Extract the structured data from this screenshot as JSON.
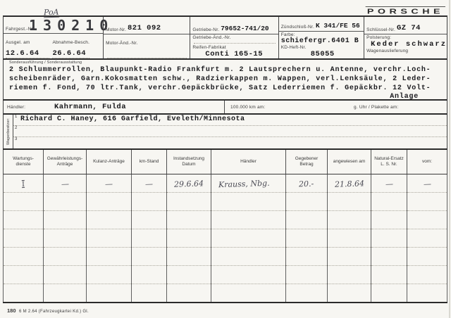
{
  "brand": {
    "logo_text": "PORSCHE"
  },
  "handwritten_note": "PoA",
  "vehicle": {
    "chassis": {
      "label": "Fahrgest.-Nr.",
      "value": "130210"
    },
    "issued": {
      "label": "Ausgel. am",
      "value": "12.6.64"
    },
    "acceptance": {
      "label": "Abnahme-Besch.",
      "value": "26.6.64"
    },
    "engine": {
      "label": "Motor-Nr.",
      "value": "821 092"
    },
    "engine_mod": {
      "label": "Motor-Änd.-Nr.",
      "value": ""
    },
    "gearbox": {
      "label": "Getriebe-Nr.",
      "value": "79652-741/20"
    },
    "gearbox_mod": {
      "label": "Getriebe-Änd.-Nr.",
      "value": ""
    },
    "tires": {
      "label": "Reifen-Fabrikat",
      "value": "Conti 165-15"
    },
    "ignition": {
      "label": "Zündschloß-Nr.",
      "value": "K 341/FE 56"
    },
    "paint": {
      "label": "Farbe:",
      "value": "schiefergr.6401 B"
    },
    "service_book": {
      "label": "KD-Heft-Nr.",
      "value": "85055"
    },
    "key": {
      "label": "Schlüssel-Nr.",
      "value": "GZ 74"
    },
    "upholstery": {
      "label": "Polsterung:",
      "value": "Keder schwarz"
    },
    "delivery": {
      "label": "Wagenauslieferung",
      "value": ""
    }
  },
  "special_equipment": {
    "label": "Sonderausführung / Sonderausstattung",
    "lines": [
      "2 Schlummerrollen, Blaupunkt-Radio Frankfurt m. 2 Lautsprechern u. Antenne, verchr.Loch-",
      "scheibenräder, Garn.Kokosmatten schw., Radzierkappen m. Wappen, verl.Lenksäule, 2 Leder-",
      "riemen f. Fond, 70 ltr.Tank, verchr.Gepäckbrücke, Satz Lederriemen f. Gepäckbr. 12 Volt-"
    ],
    "last_line": "Anlage"
  },
  "dealer_row": {
    "dealer_label": "Händler:",
    "dealer_value": "Kahrmann, Fulda",
    "km_label": "100.000 km am:",
    "clock_label": "g. Uhr / Plakette am:"
  },
  "owner": {
    "side_label": "Wagenbesitzer:",
    "rows": [
      {
        "num": "1",
        "text": "Richard C. Haney, 616 Garfield, Eveleth/Minnesota"
      },
      {
        "num": "2",
        "text": ""
      },
      {
        "num": "3",
        "text": ""
      }
    ]
  },
  "service_table": {
    "headers": [
      "Wartungs-\ndienste",
      "Gewährleistungs-\nAnträge",
      "Kulanz-Anträge",
      "km-Stand",
      "Instandsetzung\nDatum",
      "Händler",
      "Gegebener\nBetrag",
      "angewiesen am",
      "Natural-Ersatz\nL. S. Nr.",
      "vom:"
    ],
    "rows": [
      [
        "I",
        "—",
        "—",
        "—",
        "29.6.64",
        "Krauss, Nbg.",
        "20.-",
        "21.8.64",
        "—",
        "—"
      ],
      [
        "",
        "",
        "",
        "",
        "",
        "",
        "",
        "",
        "",
        ""
      ],
      [
        "",
        "",
        "",
        "",
        "",
        "",
        "",
        "",
        "",
        ""
      ],
      [
        "",
        "",
        "",
        "",
        "",
        "",
        "",
        "",
        "",
        ""
      ],
      [
        "",
        "",
        "",
        "",
        "",
        "",
        "",
        "",
        "",
        ""
      ],
      [
        "",
        "",
        "",
        "",
        "",
        "",
        "",
        "",
        "",
        ""
      ],
      [
        "",
        "",
        "",
        "",
        "",
        "",
        "",
        "",
        "",
        ""
      ]
    ]
  },
  "footer": {
    "form_number": "180",
    "text": "6 M 2.64 (Fahrzeugkartei Kd.) Gl."
  }
}
